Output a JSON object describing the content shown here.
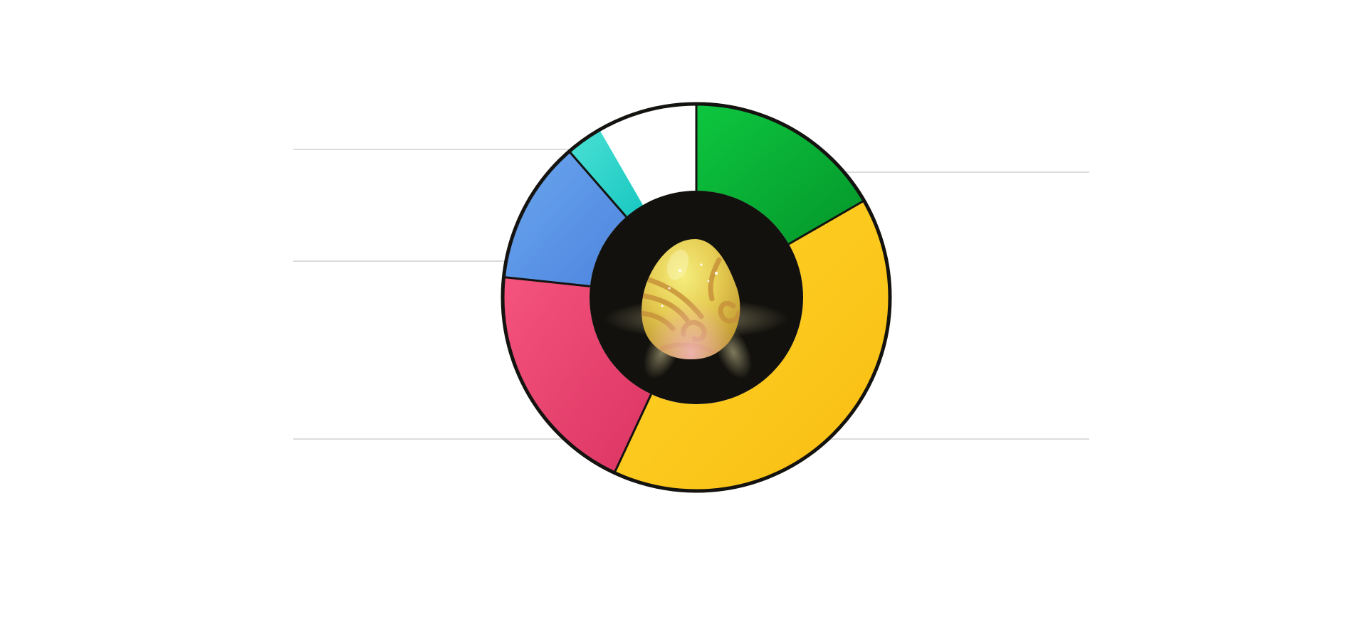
{
  "wheel": {
    "segments": [
      {
        "name": "green",
        "start_deg": 0,
        "end_deg": 60,
        "color_light": "#0dc63f",
        "color_dark": "#04962a"
      },
      {
        "name": "yellow",
        "start_deg": 60,
        "end_deg": 205,
        "color_light": "#ffd52b",
        "color_dark": "#f9bd10"
      },
      {
        "name": "pink",
        "start_deg": 205,
        "end_deg": 276,
        "color_light": "#f4547d",
        "color_dark": "#dc3463"
      },
      {
        "name": "blue",
        "start_deg": 276,
        "end_deg": 319,
        "color_light": "#6aa6ee",
        "color_dark": "#4d84de"
      },
      {
        "name": "teal",
        "start_deg": 319,
        "end_deg": 330,
        "color_light": "#4ae0d4",
        "color_dark": "#18c8c1"
      }
    ],
    "outline_color": "#141310",
    "hub_color": "#12110d",
    "egg": {
      "colors": {
        "highlight": "#f5ee7e",
        "base": "#e6cc52",
        "shadow": "#b98f29",
        "pattern": "#c7923a",
        "pink_tint": "#f3b4c0",
        "glow": "#d8cf9c"
      }
    }
  },
  "decor_lines": {
    "color": "#dcdcdc"
  }
}
